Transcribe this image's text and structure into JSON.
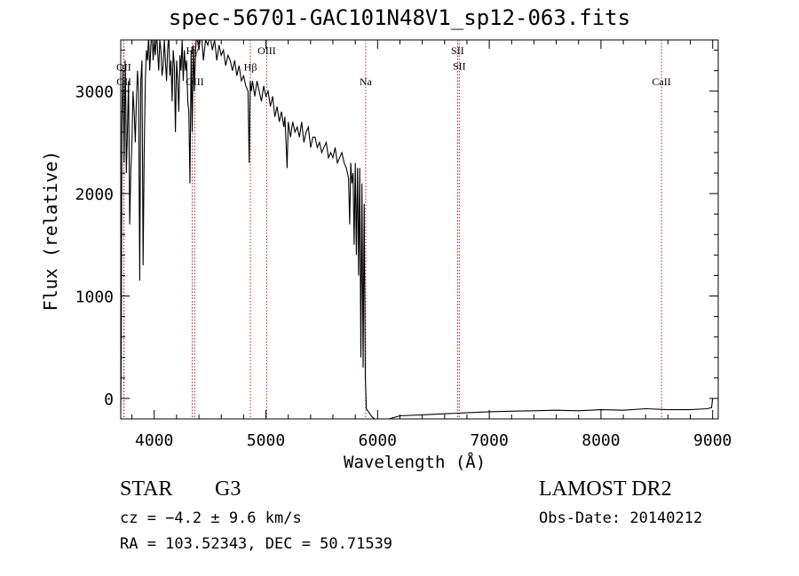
{
  "chart_data": {
    "type": "line",
    "title": "spec-56701-GAC101N48V1_sp12-063.fits",
    "xlabel": "Wavelength (Å)",
    "ylabel": "Flux (relative)",
    "xlim": [
      3700,
      9050
    ],
    "ylim": [
      -200,
      3500
    ],
    "xticks": [
      4000,
      5000,
      6000,
      7000,
      8000,
      9000
    ],
    "yticks": [
      0,
      1000,
      2000,
      3000
    ],
    "series": [
      {
        "name": "flux",
        "x": [
          3700,
          3705,
          3710,
          3720,
          3730,
          3740,
          3745,
          3750,
          3760,
          3770,
          3780,
          3790,
          3800,
          3810,
          3820,
          3830,
          3840,
          3850,
          3860,
          3870,
          3880,
          3890,
          3900,
          3910,
          3920,
          3930,
          3940,
          3950,
          3960,
          3970,
          3980,
          3990,
          4000,
          4010,
          4020,
          4030,
          4040,
          4050,
          4060,
          4070,
          4080,
          4090,
          4100,
          4110,
          4120,
          4130,
          4140,
          4150,
          4160,
          4170,
          4180,
          4190,
          4200,
          4210,
          4220,
          4230,
          4240,
          4250,
          4260,
          4270,
          4280,
          4290,
          4300,
          4310,
          4320,
          4330,
          4340,
          4350,
          4360,
          4370,
          4380,
          4400,
          4420,
          4440,
          4460,
          4480,
          4500,
          4520,
          4540,
          4560,
          4580,
          4600,
          4620,
          4640,
          4660,
          4680,
          4700,
          4720,
          4740,
          4760,
          4780,
          4800,
          4820,
          4840,
          4850,
          4860,
          4870,
          4880,
          4900,
          4920,
          4940,
          4960,
          4980,
          5000,
          5020,
          5040,
          5060,
          5080,
          5100,
          5120,
          5140,
          5160,
          5170,
          5180,
          5190,
          5200,
          5220,
          5240,
          5260,
          5280,
          5300,
          5320,
          5340,
          5360,
          5380,
          5400,
          5420,
          5440,
          5460,
          5480,
          5500,
          5520,
          5540,
          5560,
          5580,
          5600,
          5620,
          5640,
          5660,
          5680,
          5700,
          5720,
          5740,
          5750,
          5760,
          5770,
          5780,
          5790,
          5800,
          5810,
          5820,
          5830,
          5840,
          5850,
          5860,
          5870,
          5880,
          5890,
          5900,
          5950,
          6000,
          6100,
          6200,
          6400,
          6600,
          6800,
          7000,
          7200,
          7400,
          7600,
          7800,
          8000,
          8200,
          8400,
          8600,
          8800,
          8950,
          8990,
          9000
        ],
        "values": [
          -150,
          600,
          2700,
          3200,
          2300,
          3300,
          2900,
          2200,
          2600,
          3100,
          1700,
          2200,
          2500,
          3000,
          2800,
          2500,
          2900,
          3200,
          3000,
          1150,
          3100,
          3300,
          1300,
          2400,
          3100,
          3400,
          3300,
          3550,
          3200,
          3450,
          3600,
          3300,
          3500,
          3350,
          3600,
          3400,
          3200,
          3500,
          3400,
          3150,
          3250,
          3500,
          3300,
          3100,
          3400,
          3550,
          3150,
          3300,
          2900,
          3400,
          3250,
          2600,
          3300,
          3100,
          2800,
          3350,
          3200,
          3500,
          3100,
          3400,
          3200,
          3300,
          2900,
          2800,
          2100,
          3400,
          2600,
          3450,
          3000,
          3400,
          3550,
          3400,
          3600,
          3300,
          3500,
          3450,
          3550,
          3400,
          3500,
          3300,
          3450,
          3350,
          3400,
          3250,
          3350,
          3300,
          3200,
          3300,
          3150,
          3250,
          3100,
          3150,
          3050,
          3000,
          2300,
          3100,
          3000,
          3100,
          2950,
          3100,
          3000,
          2900,
          3050,
          2950,
          3000,
          2850,
          2950,
          2750,
          2850,
          2700,
          2800,
          2650,
          2750,
          2500,
          2250,
          2700,
          2550,
          2700,
          2600,
          2650,
          2550,
          2700,
          2500,
          2600,
          2650,
          2450,
          2550,
          2550,
          2450,
          2500,
          2400,
          2450,
          2500,
          2350,
          2400,
          2350,
          2450,
          2300,
          2350,
          2400,
          2300,
          2250,
          2150,
          1700,
          2300,
          2100,
          2200,
          1500,
          2300,
          1400,
          2250,
          1200,
          2250,
          400,
          2100,
          300,
          1900,
          200,
          -100,
          -180,
          -220,
          -200,
          -170,
          -160,
          -150,
          -140,
          -130,
          -125,
          -120,
          -115,
          -120,
          -110,
          -115,
          -100,
          -110,
          -110,
          -100,
          -90,
          0
        ]
      }
    ],
    "line_markers": [
      {
        "label": "OII",
        "x": 3727,
        "label_y": 3200
      },
      {
        "label": "OII",
        "x": 3729,
        "label_y": 3060
      },
      {
        "label": "Hγ",
        "x": 4340,
        "label_y": 3360
      },
      {
        "label": "OIII",
        "x": 4363,
        "label_y": 3060
      },
      {
        "label": "Hβ",
        "x": 4861,
        "label_y": 3200
      },
      {
        "label": "OIII",
        "x": 5007,
        "label_y": 3360
      },
      {
        "label": "Na",
        "x": 5893,
        "label_y": 3060
      },
      {
        "label": "SII",
        "x": 6716,
        "label_y": 3360
      },
      {
        "label": "SII",
        "x": 6731,
        "label_y": 3210
      },
      {
        "label": "CaII",
        "x": 8542,
        "label_y": 3060
      }
    ]
  },
  "info": {
    "object_type": "STAR",
    "subclass": "G3",
    "cz": "cz = −4.2 ± 9.6 km/s",
    "coords": "RA = 103.52343, DEC =  50.71539",
    "survey": "LAMOST DR2",
    "obs_date": "Obs-Date: 20140212"
  },
  "colors": {
    "axis": "#000000",
    "spectrum": "#000000",
    "marker_line": "#b22222",
    "background": "#ffffff"
  }
}
